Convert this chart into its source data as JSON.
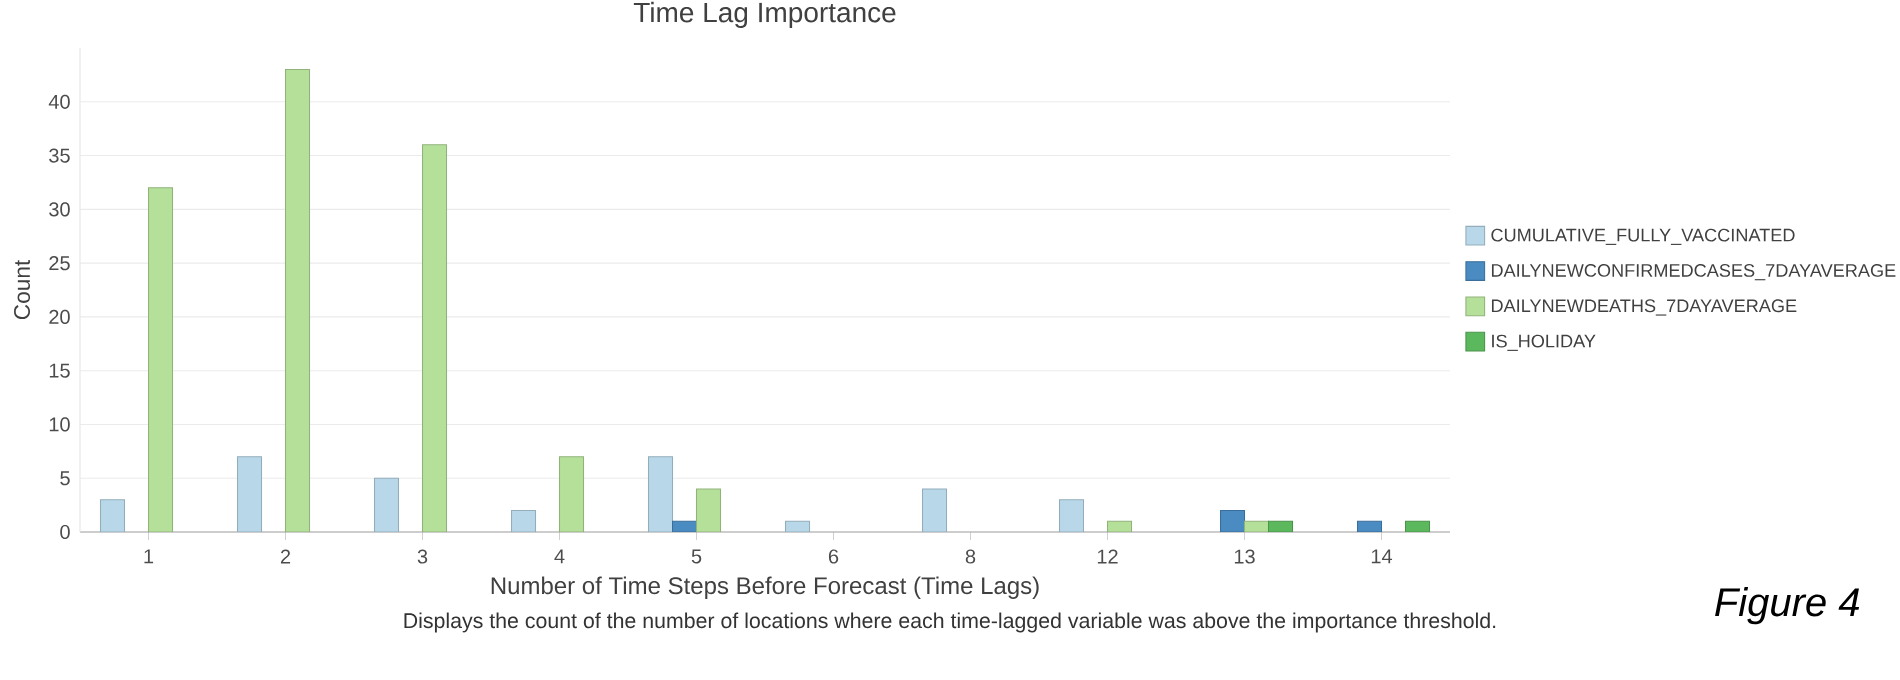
{
  "chart_data": {
    "type": "bar",
    "title": "Time Lag Importance",
    "xlabel": "Number of Time Steps Before Forecast (Time Lags)",
    "ylabel": "Count",
    "categories": [
      "1",
      "2",
      "3",
      "4",
      "5",
      "6",
      "8",
      "12",
      "13",
      "14"
    ],
    "series": [
      {
        "name": "CUMULATIVE_FULLY_VACCINATED",
        "color": "#b8d8ea",
        "values": [
          3,
          7,
          5,
          2,
          7,
          1,
          4,
          3,
          null,
          null
        ]
      },
      {
        "name": "DAILYNEWCONFIRMEDCASES_7DAYAVERAGE",
        "color": "#4a8bc2",
        "values": [
          null,
          null,
          null,
          null,
          1,
          null,
          null,
          null,
          2,
          1
        ]
      },
      {
        "name": "DAILYNEWDEATHS_7DAYAVERAGE",
        "color": "#b5e09a",
        "values": [
          32,
          43,
          36,
          7,
          4,
          null,
          null,
          1,
          1,
          null
        ]
      },
      {
        "name": "IS_HOLIDAY",
        "color": "#5cb85c",
        "values": [
          null,
          null,
          null,
          null,
          null,
          null,
          null,
          null,
          1,
          1
        ]
      }
    ],
    "ylim": [
      0,
      45
    ],
    "yticks": [
      0,
      5,
      10,
      15,
      20,
      25,
      30,
      35,
      40
    ],
    "grid": "y",
    "legend": "right",
    "annotations": [
      "Displays the count of the number of locations where each time-lagged variable was above the importance threshold.",
      "Figure 4"
    ]
  }
}
